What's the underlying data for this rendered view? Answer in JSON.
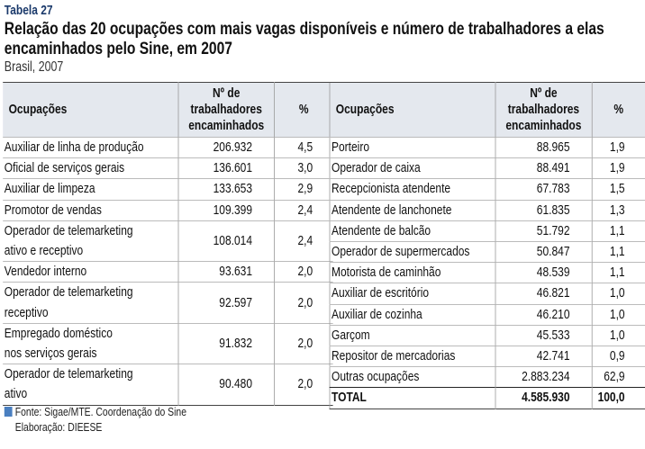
{
  "header": {
    "label": "Tabela 27",
    "title": "Relação das 20 ocupações com mais vagas disponíveis e número de trabalhadores a elas encaminhados pelo Sine, em 2007",
    "subtitle": "Brasil, 2007"
  },
  "table": {
    "left": {
      "columns": [
        "Ocupações",
        [
          "Nº de",
          "trabalhadores",
          "encaminhados"
        ],
        "%"
      ],
      "rows": [
        [
          [
            "Auxiliar de linha de produção"
          ],
          "206.932",
          "4,5"
        ],
        [
          [
            "Oficial de serviços gerais"
          ],
          "136.601",
          "3,0"
        ],
        [
          [
            "Auxiliar de limpeza"
          ],
          "133.653",
          "2,9"
        ],
        [
          [
            "Promotor de vendas"
          ],
          "109.399",
          "2,4"
        ],
        [
          [
            "Operador de telemarketing",
            "ativo e receptivo"
          ],
          "108.014",
          "2,4"
        ],
        [
          [
            "Vendedor interno"
          ],
          "93.631",
          "2,0"
        ],
        [
          [
            "Operador de telemarketing",
            "receptivo"
          ],
          "92.597",
          "2,0"
        ],
        [
          [
            "Empregado doméstico",
            "nos serviços gerais"
          ],
          "91.832",
          "2,0"
        ],
        [
          [
            "Operador de telemarketing",
            "ativo"
          ],
          "90.480",
          "2,0"
        ]
      ]
    },
    "right": {
      "columns": [
        "Ocupações",
        [
          "Nº de",
          "trabalhadores",
          "encaminhados"
        ],
        "%"
      ],
      "rows": [
        [
          [
            "Porteiro"
          ],
          "88.965",
          "1,9"
        ],
        [
          [
            "Operador de caixa"
          ],
          "88.491",
          "1,9"
        ],
        [
          [
            "Recepcionista atendente"
          ],
          "67.783",
          "1,5"
        ],
        [
          [
            "Atendente de lanchonete"
          ],
          "61.835",
          "1,3"
        ],
        [
          [
            "Atendente de balcão"
          ],
          "51.792",
          "1,1"
        ],
        [
          [
            "Operador de supermercados"
          ],
          "50.847",
          "1,1"
        ],
        [
          [
            "Motorista de caminhão"
          ],
          "48.539",
          "1,1"
        ],
        [
          [
            "Auxiliar de escritório"
          ],
          "46.821",
          "1,0"
        ],
        [
          [
            "Auxiliar de cozinha"
          ],
          "46.210",
          "1,0"
        ],
        [
          [
            "Garçom"
          ],
          "45.533",
          "1,0"
        ],
        [
          [
            "Repositor de mercadorias"
          ],
          "42.741",
          "0,9"
        ],
        [
          [
            "Outras ocupações"
          ],
          "2.883.234",
          "62,9"
        ],
        [
          [
            "TOTAL"
          ],
          "4.585.930",
          "100,0"
        ]
      ]
    }
  },
  "footer": {
    "source": "Fonte: Sigae/MTE. Coordenação do Sine",
    "credit": "Elaboração: DIEESE"
  }
}
